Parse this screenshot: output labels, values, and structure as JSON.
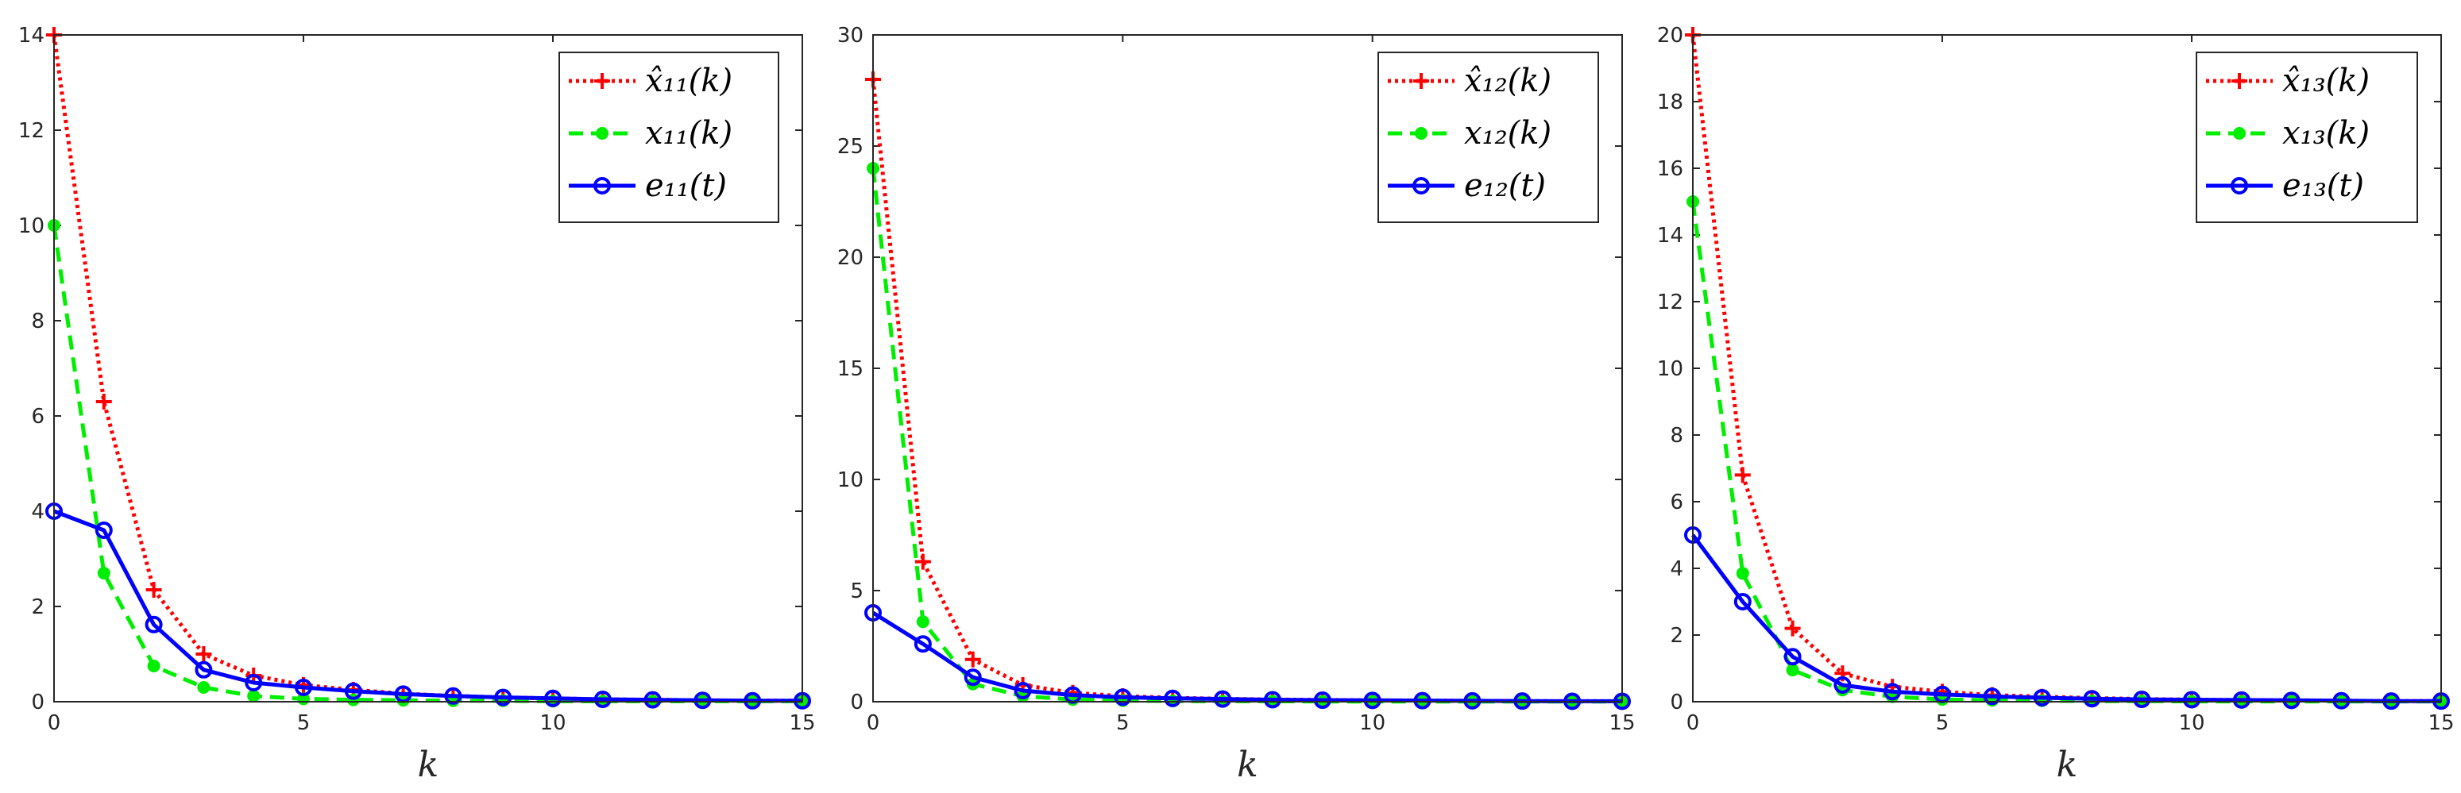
{
  "chart_data": [
    {
      "type": "line",
      "xlabel": "k",
      "xlim": [
        0,
        15
      ],
      "ylim": [
        0,
        14
      ],
      "xticks": [
        "0",
        "5",
        "10",
        "15"
      ],
      "yticks": [
        "0",
        "2",
        "4",
        "6",
        "8",
        "10",
        "12",
        "14"
      ],
      "grid": false,
      "legend_position": "top-right",
      "x": [
        0,
        1,
        2,
        3,
        4,
        5,
        6,
        7,
        8,
        9,
        10,
        11,
        12,
        13,
        14,
        15
      ],
      "series": [
        {
          "name": "x̂₁₁(k)",
          "color": "#ff0000",
          "style": "dotted",
          "marker": "plus",
          "values": [
            14.0,
            6.3,
            2.35,
            1.0,
            0.55,
            0.35,
            0.25,
            0.17,
            0.12,
            0.09,
            0.07,
            0.05,
            0.04,
            0.03,
            0.02,
            0.02
          ]
        },
        {
          "name": "x₁₁(k)",
          "color": "#00ee00",
          "style": "dashed",
          "marker": "dot",
          "values": [
            10.0,
            2.7,
            0.75,
            0.3,
            0.12,
            0.06,
            0.04,
            0.03,
            0.02,
            0.02,
            0.01,
            0.01,
            0.01,
            0.01,
            0.01,
            0.01
          ]
        },
        {
          "name": "e₁₁(t)",
          "color": "#0000ff",
          "style": "solid",
          "marker": "circle",
          "values": [
            4.0,
            3.6,
            1.62,
            0.67,
            0.4,
            0.3,
            0.22,
            0.16,
            0.12,
            0.09,
            0.07,
            0.05,
            0.04,
            0.03,
            0.02,
            0.02
          ]
        }
      ]
    },
    {
      "type": "line",
      "xlabel": "k",
      "xlim": [
        0,
        15
      ],
      "ylim": [
        0,
        30
      ],
      "xticks": [
        "0",
        "5",
        "10",
        "15"
      ],
      "yticks": [
        "0",
        "5",
        "10",
        "15",
        "20",
        "25",
        "30"
      ],
      "grid": false,
      "legend_position": "top-right",
      "x": [
        0,
        1,
        2,
        3,
        4,
        5,
        6,
        7,
        8,
        9,
        10,
        11,
        12,
        13,
        14,
        15
      ],
      "series": [
        {
          "name": "x̂₁₂(k)",
          "color": "#ff0000",
          "style": "dotted",
          "marker": "plus",
          "values": [
            28.0,
            6.3,
            1.9,
            0.75,
            0.4,
            0.25,
            0.18,
            0.13,
            0.1,
            0.08,
            0.06,
            0.05,
            0.04,
            0.03,
            0.02,
            0.02
          ]
        },
        {
          "name": "x₁₂(k)",
          "color": "#00ee00",
          "style": "dashed",
          "marker": "dot",
          "values": [
            24.0,
            3.6,
            0.8,
            0.25,
            0.1,
            0.05,
            0.03,
            0.02,
            0.02,
            0.01,
            0.01,
            0.01,
            0.01,
            0.01,
            0.01,
            0.01
          ]
        },
        {
          "name": "e₁₂(t)",
          "color": "#0000ff",
          "style": "solid",
          "marker": "circle",
          "values": [
            4.0,
            2.6,
            1.1,
            0.5,
            0.3,
            0.2,
            0.15,
            0.12,
            0.09,
            0.07,
            0.06,
            0.05,
            0.04,
            0.03,
            0.02,
            0.02
          ]
        }
      ]
    },
    {
      "type": "line",
      "xlabel": "k",
      "xlim": [
        0,
        15
      ],
      "ylim": [
        0,
        20
      ],
      "xticks": [
        "0",
        "5",
        "10",
        "15"
      ],
      "yticks": [
        "0",
        "2",
        "4",
        "6",
        "8",
        "10",
        "12",
        "14",
        "16",
        "18",
        "20"
      ],
      "grid": false,
      "legend_position": "top-right",
      "x": [
        0,
        1,
        2,
        3,
        4,
        5,
        6,
        7,
        8,
        9,
        10,
        11,
        12,
        13,
        14,
        15
      ],
      "series": [
        {
          "name": "x̂₁₃(k)",
          "color": "#ff0000",
          "style": "dotted",
          "marker": "plus",
          "values": [
            20.0,
            6.8,
            2.2,
            0.85,
            0.45,
            0.3,
            0.2,
            0.15,
            0.11,
            0.08,
            0.06,
            0.05,
            0.04,
            0.03,
            0.02,
            0.02
          ]
        },
        {
          "name": "x₁₃(k)",
          "color": "#00ee00",
          "style": "dashed",
          "marker": "dot",
          "values": [
            15.0,
            3.85,
            0.95,
            0.35,
            0.15,
            0.07,
            0.04,
            0.03,
            0.02,
            0.02,
            0.01,
            0.01,
            0.01,
            0.01,
            0.01,
            0.01
          ]
        },
        {
          "name": "e₁₃(t)",
          "color": "#0000ff",
          "style": "solid",
          "marker": "circle",
          "values": [
            5.0,
            3.0,
            1.35,
            0.5,
            0.3,
            0.22,
            0.16,
            0.12,
            0.09,
            0.07,
            0.06,
            0.05,
            0.04,
            0.03,
            0.02,
            0.02
          ]
        }
      ]
    }
  ]
}
